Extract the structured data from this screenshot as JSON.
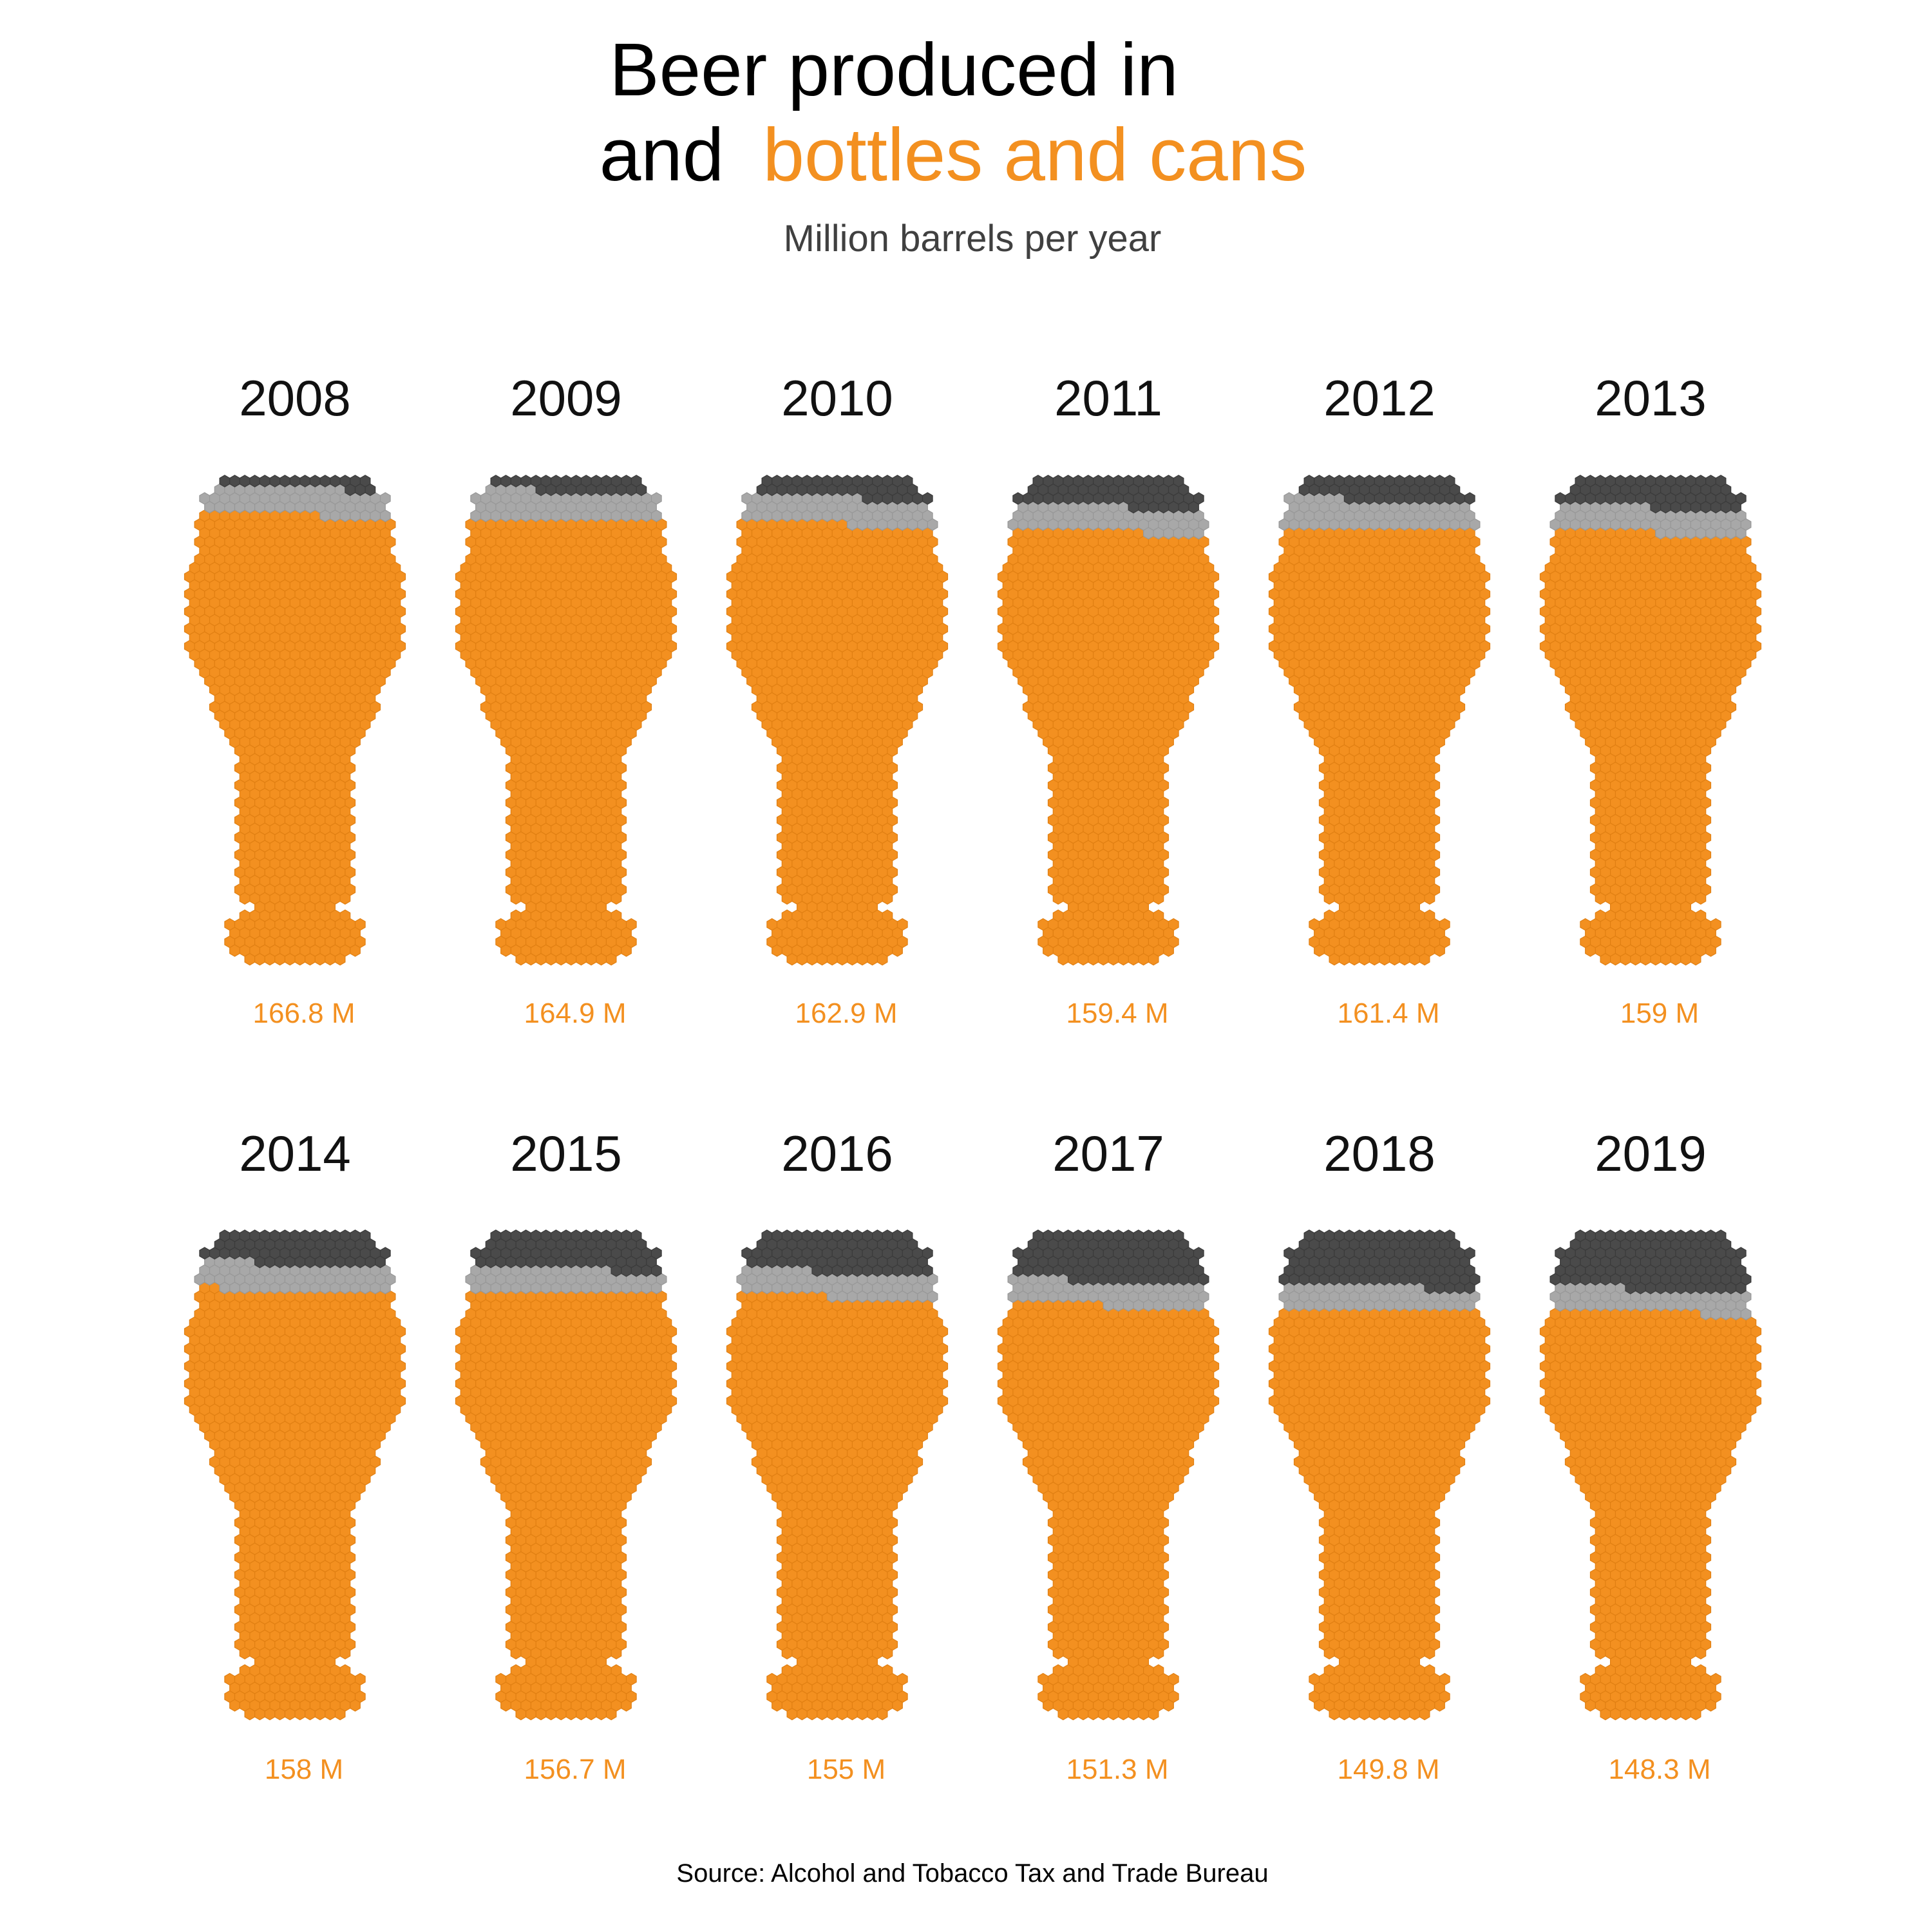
{
  "title": {
    "line1": "Beer produced in",
    "line2_plain": "and",
    "line2_highlight": "bottles and cans"
  },
  "subtitle": "Million barrels per year",
  "caption": "Source: Alcohol and Tobacco Tax and Trade Bureau",
  "colors": {
    "beer": "#F39020",
    "beer_stroke": "#E07F12",
    "foam_dark": "#4A4A4A",
    "foam_dark_stroke": "#3A3A3A",
    "foam_light": "#A8A8A8",
    "foam_light_stroke": "#979797",
    "value_text": "#F39020",
    "highlight_text": "#F39020"
  },
  "chart_data": {
    "type": "waffle",
    "shape": "beer-glass",
    "unit": "Million barrels",
    "categories": [
      "2008",
      "2009",
      "2010",
      "2011",
      "2012",
      "2013",
      "2014",
      "2015",
      "2016",
      "2017",
      "2018",
      "2019"
    ],
    "values": [
      166.8,
      164.9,
      162.9,
      159.4,
      161.4,
      159,
      158,
      156.7,
      155,
      151.3,
      149.8,
      148.3
    ],
    "value_labels": [
      "166.8 M",
      "164.9 M",
      "162.9 M",
      "159.4 M",
      "161.4 M",
      "159 M",
      "158 M",
      "156.7 M",
      "155 M",
      "151.3 M",
      "149.8 M",
      "148.3 M"
    ],
    "layout": "2 rows x 6 columns"
  }
}
